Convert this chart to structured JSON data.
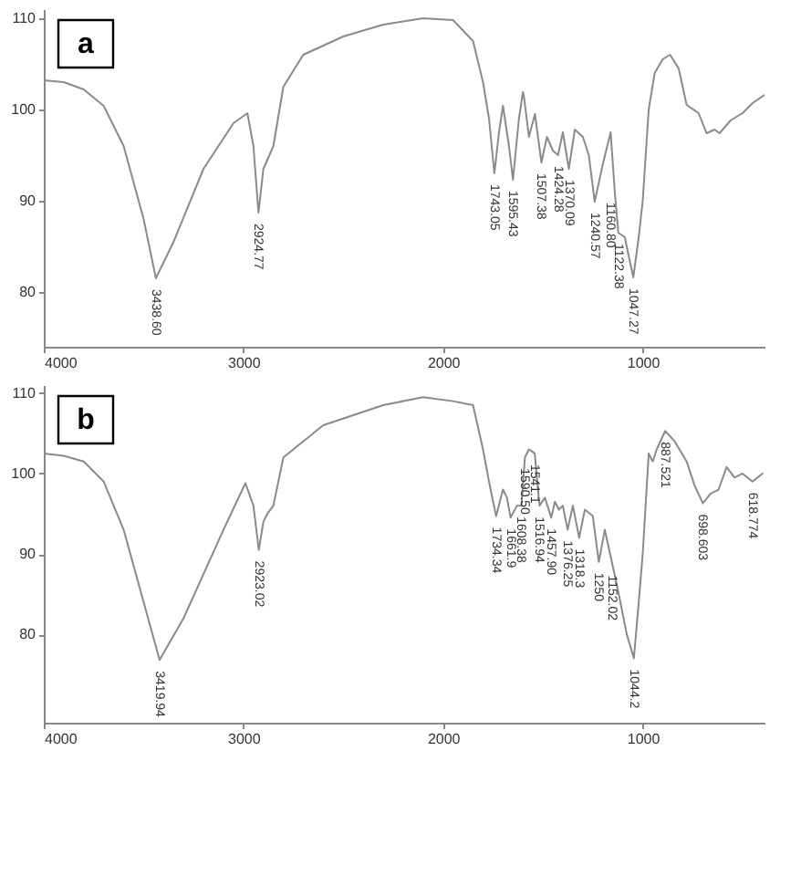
{
  "chart_data": [
    {
      "type": "line",
      "title": "a",
      "xlim": [
        4000,
        390
      ],
      "ylim": [
        74,
        111
      ],
      "xticks": [
        4000,
        3000,
        2000,
        1000
      ],
      "yticks": [
        80,
        90,
        100,
        110
      ],
      "grid": false,
      "marker": "none",
      "line_style": "solid",
      "series": [
        {
          "color": "#8a8a8a",
          "x": [
            4000,
            3900,
            3800,
            3700,
            3600,
            3500,
            3438.6,
            3350,
            3200,
            3050,
            2980,
            2950,
            2924.77,
            2900,
            2880,
            2850,
            2800,
            2700,
            2500,
            2300,
            2100,
            1950,
            1850,
            1800,
            1770,
            1743.05,
            1720,
            1700,
            1670,
            1650,
            1620,
            1600,
            1595.43,
            1570,
            1540,
            1507.38,
            1480,
            1450,
            1424.28,
            1400,
            1370.09,
            1340,
            1300,
            1270,
            1240.57,
            1200,
            1160.8,
            1140,
            1122.38,
            1090,
            1047.27,
            1020,
            1000,
            970,
            940,
            900,
            863,
            820,
            780,
            720,
            680,
            640,
            615,
            560,
            500,
            450,
            390
          ],
          "values": [
            103.2,
            103.0,
            102.2,
            100.4,
            96,
            88,
            81.5,
            85.5,
            93.5,
            98.5,
            99.6,
            96,
            88.7,
            93.5,
            94.5,
            96,
            102.5,
            106,
            108,
            109.3,
            110,
            109.8,
            107.5,
            103,
            99,
            93.0,
            97.5,
            100.4,
            96,
            92.3,
            99,
            101.9,
            101.5,
            97,
            99.5,
            94.2,
            97,
            95.5,
            95.0,
            97.5,
            93.5,
            97.8,
            97,
            95,
            89.9,
            94,
            97.5,
            91,
            86.5,
            86,
            81.6,
            86,
            90,
            100,
            104,
            105.5,
            106,
            104.5,
            100.5,
            99.6,
            97.4,
            97.8,
            97.4,
            98.8,
            99.6,
            100.7,
            101.6
          ]
        }
      ],
      "annotations": [
        {
          "text": "3438.60",
          "x": 3438.6,
          "y": 81.5
        },
        {
          "text": "2924.77",
          "x": 2924.77,
          "y": 88.7
        },
        {
          "text": "1743.05",
          "x": 1743.05,
          "y": 93.0
        },
        {
          "text": "1595.43",
          "x": 1650,
          "y": 92.3
        },
        {
          "text": "1507.38",
          "x": 1507.38,
          "y": 94.2
        },
        {
          "text": "1424.28",
          "x": 1424.28,
          "y": 95.0
        },
        {
          "text": "1370.09",
          "x": 1370.09,
          "y": 93.5
        },
        {
          "text": "1240.57",
          "x": 1240.57,
          "y": 89.9
        },
        {
          "text": "1160.80",
          "x": 1160.8,
          "y": 91
        },
        {
          "text": "1122.38",
          "x": 1122.38,
          "y": 86.5
        },
        {
          "text": "1047.27",
          "x": 1047.27,
          "y": 81.6
        }
      ]
    },
    {
      "type": "line",
      "title": "b",
      "xlim": [
        4000,
        390
      ],
      "ylim": [
        69,
        111
      ],
      "xticks": [
        4000,
        3000,
        2000,
        1000
      ],
      "yticks": [
        80,
        90,
        100,
        110
      ],
      "grid": false,
      "marker": "none",
      "line_style": "solid",
      "series": [
        {
          "color": "#8a8a8a",
          "x": [
            4000,
            3900,
            3800,
            3700,
            3600,
            3500,
            3419.94,
            3300,
            3100,
            2990,
            2950,
            2923.02,
            2900,
            2880,
            2850,
            2800,
            2600,
            2300,
            2100,
            1950,
            1850,
            1800,
            1770,
            1734.34,
            1700,
            1680,
            1661.9,
            1630,
            1608,
            1590,
            1570,
            1541,
            1516.94,
            1490,
            1457.9,
            1440,
            1420,
            1400,
            1376.25,
            1350,
            1318.3,
            1290,
            1250,
            1220,
            1190,
            1152.02,
            1120,
            1080,
            1044.2,
            1020,
            1000,
            970,
            950,
            930,
            887.5,
            840,
            780,
            740,
            698.6,
            660,
            620,
            580,
            540,
            500,
            450,
            400
          ],
          "values": [
            102.5,
            102.2,
            101.5,
            99,
            93,
            84,
            76.8,
            82,
            93,
            98.8,
            96,
            90.5,
            94,
            95,
            96,
            102,
            106,
            108.5,
            109.5,
            109,
            108.5,
            103,
            99,
            94.7,
            98,
            97,
            94.5,
            96,
            96,
            102,
            103,
            102.5,
            96,
            97,
            94.5,
            96.5,
            95.5,
            96,
            93,
            96,
            92,
            95.5,
            94.7,
            89,
            93,
            88.7,
            85,
            80,
            77,
            84,
            90,
            102.5,
            101.5,
            103,
            105.3,
            104,
            101.5,
            98.5,
            96.3,
            97.5,
            98,
            100.8,
            99.5,
            100,
            99,
            100
          ]
        }
      ],
      "annotations": [
        {
          "text": "3419.94",
          "x": 3419.94,
          "y": 76.8
        },
        {
          "text": "2923.02",
          "x": 2923.02,
          "y": 90.5
        },
        {
          "text": "1734.34",
          "x": 1734.34,
          "y": 94.7
        },
        {
          "text": "1661.9",
          "x": 1661.9,
          "y": 94.5
        },
        {
          "text": "1608.38",
          "x": 1608,
          "y": 96
        },
        {
          "text": "1590.50",
          "x": 1590,
          "y": 102
        },
        {
          "text": "1541.1",
          "x": 1541,
          "y": 102.5
        },
        {
          "text": "1516.94",
          "x": 1516.94,
          "y": 96
        },
        {
          "text": "1457.90",
          "x": 1457.9,
          "y": 94.5
        },
        {
          "text": "1376.25",
          "x": 1376.25,
          "y": 93
        },
        {
          "text": "1318.3",
          "x": 1318.3,
          "y": 92
        },
        {
          "text": "1250",
          "x": 1220,
          "y": 89
        },
        {
          "text": "1152.02",
          "x": 1152.02,
          "y": 88.7
        },
        {
          "text": "1044.2",
          "x": 1044.2,
          "y": 77
        },
        {
          "text": "887.521",
          "x": 887.5,
          "y": 105.3
        },
        {
          "text": "698.603",
          "x": 698.6,
          "y": 96.3
        },
        {
          "text": "618.774",
          "x": 450,
          "y": 99
        }
      ]
    }
  ]
}
